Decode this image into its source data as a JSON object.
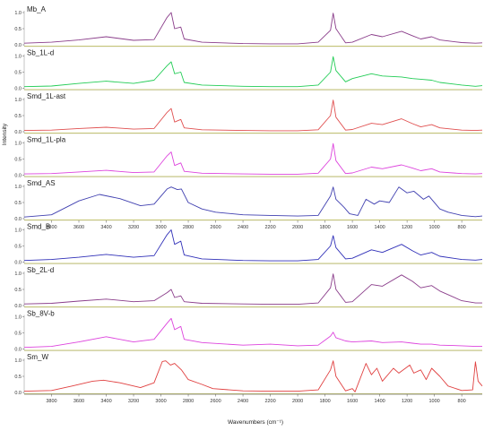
{
  "chart_data": {
    "type": "line",
    "xlabel": "Wavenumbers (cm⁻¹)",
    "ylabel": "Intensity",
    "xlim": [
      4000,
      650
    ],
    "x_ticks": [
      3800,
      3600,
      3400,
      3200,
      3000,
      2800,
      2600,
      2400,
      2200,
      2000,
      1800,
      1600,
      1400,
      1200,
      1000,
      800
    ],
    "y_tick_labels": [
      "0.0",
      "0.5",
      "1.0"
    ],
    "baseline_color": "#b5b54a",
    "series": [
      {
        "name": "Mb_A",
        "color": "#8a3d8a",
        "points": [
          [
            4000,
            0.05
          ],
          [
            3800,
            0.08
          ],
          [
            3600,
            0.15
          ],
          [
            3400,
            0.25
          ],
          [
            3200,
            0.14
          ],
          [
            3050,
            0.16
          ],
          [
            2955,
            0.85
          ],
          [
            2925,
            1.0
          ],
          [
            2900,
            0.5
          ],
          [
            2855,
            0.55
          ],
          [
            2830,
            0.18
          ],
          [
            2700,
            0.08
          ],
          [
            2400,
            0.04
          ],
          [
            2200,
            0.03
          ],
          [
            2000,
            0.03
          ],
          [
            1850,
            0.08
          ],
          [
            1760,
            0.45
          ],
          [
            1740,
            0.98
          ],
          [
            1720,
            0.5
          ],
          [
            1650,
            0.06
          ],
          [
            1600,
            0.08
          ],
          [
            1460,
            0.32
          ],
          [
            1380,
            0.25
          ],
          [
            1240,
            0.42
          ],
          [
            1160,
            0.28
          ],
          [
            1100,
            0.18
          ],
          [
            1020,
            0.25
          ],
          [
            960,
            0.15
          ],
          [
            800,
            0.07
          ],
          [
            700,
            0.05
          ],
          [
            650,
            0.06
          ]
        ]
      },
      {
        "name": "Sb_1L-d",
        "color": "#22cc55",
        "points": [
          [
            4000,
            0.05
          ],
          [
            3800,
            0.07
          ],
          [
            3600,
            0.15
          ],
          [
            3400,
            0.22
          ],
          [
            3200,
            0.15
          ],
          [
            3050,
            0.25
          ],
          [
            2955,
            0.7
          ],
          [
            2925,
            0.82
          ],
          [
            2900,
            0.45
          ],
          [
            2855,
            0.5
          ],
          [
            2830,
            0.18
          ],
          [
            2700,
            0.1
          ],
          [
            2400,
            0.06
          ],
          [
            2200,
            0.05
          ],
          [
            2000,
            0.05
          ],
          [
            1850,
            0.1
          ],
          [
            1760,
            0.5
          ],
          [
            1740,
            0.98
          ],
          [
            1720,
            0.55
          ],
          [
            1650,
            0.2
          ],
          [
            1600,
            0.3
          ],
          [
            1460,
            0.45
          ],
          [
            1380,
            0.38
          ],
          [
            1240,
            0.35
          ],
          [
            1160,
            0.3
          ],
          [
            1100,
            0.28
          ],
          [
            1020,
            0.25
          ],
          [
            960,
            0.18
          ],
          [
            800,
            0.1
          ],
          [
            700,
            0.06
          ],
          [
            650,
            0.08
          ]
        ]
      },
      {
        "name": "Smd_1L-ast",
        "color": "#e05050",
        "points": [
          [
            4000,
            0.04
          ],
          [
            3800,
            0.05
          ],
          [
            3600,
            0.1
          ],
          [
            3400,
            0.14
          ],
          [
            3200,
            0.08
          ],
          [
            3050,
            0.1
          ],
          [
            2955,
            0.6
          ],
          [
            2925,
            0.72
          ],
          [
            2900,
            0.3
          ],
          [
            2855,
            0.38
          ],
          [
            2830,
            0.12
          ],
          [
            2700,
            0.06
          ],
          [
            2400,
            0.04
          ],
          [
            2200,
            0.03
          ],
          [
            2000,
            0.03
          ],
          [
            1850,
            0.06
          ],
          [
            1760,
            0.5
          ],
          [
            1740,
            0.98
          ],
          [
            1720,
            0.45
          ],
          [
            1650,
            0.05
          ],
          [
            1600,
            0.07
          ],
          [
            1460,
            0.26
          ],
          [
            1380,
            0.22
          ],
          [
            1240,
            0.4
          ],
          [
            1160,
            0.25
          ],
          [
            1100,
            0.15
          ],
          [
            1020,
            0.22
          ],
          [
            960,
            0.12
          ],
          [
            800,
            0.05
          ],
          [
            700,
            0.04
          ],
          [
            650,
            0.05
          ]
        ]
      },
      {
        "name": "Smd_1L-pla",
        "color": "#dd44dd",
        "points": [
          [
            4000,
            0.04
          ],
          [
            3800,
            0.05
          ],
          [
            3600,
            0.1
          ],
          [
            3400,
            0.15
          ],
          [
            3200,
            0.08
          ],
          [
            3050,
            0.1
          ],
          [
            2955,
            0.6
          ],
          [
            2925,
            0.72
          ],
          [
            2900,
            0.3
          ],
          [
            2855,
            0.38
          ],
          [
            2830,
            0.12
          ],
          [
            2700,
            0.06
          ],
          [
            2400,
            0.04
          ],
          [
            2200,
            0.03
          ],
          [
            2000,
            0.03
          ],
          [
            1850,
            0.06
          ],
          [
            1760,
            0.5
          ],
          [
            1740,
            0.98
          ],
          [
            1720,
            0.45
          ],
          [
            1650,
            0.05
          ],
          [
            1600,
            0.07
          ],
          [
            1460,
            0.25
          ],
          [
            1380,
            0.2
          ],
          [
            1240,
            0.32
          ],
          [
            1160,
            0.22
          ],
          [
            1100,
            0.14
          ],
          [
            1020,
            0.2
          ],
          [
            960,
            0.1
          ],
          [
            800,
            0.05
          ],
          [
            700,
            0.04
          ],
          [
            650,
            0.05
          ]
        ]
      },
      {
        "name": "Smd_AS",
        "color": "#4040b0",
        "points": [
          [
            4000,
            0.05
          ],
          [
            3800,
            0.12
          ],
          [
            3600,
            0.55
          ],
          [
            3450,
            0.75
          ],
          [
            3300,
            0.62
          ],
          [
            3150,
            0.4
          ],
          [
            3050,
            0.45
          ],
          [
            2955,
            0.92
          ],
          [
            2925,
            0.98
          ],
          [
            2880,
            0.9
          ],
          [
            2850,
            0.92
          ],
          [
            2800,
            0.5
          ],
          [
            2700,
            0.3
          ],
          [
            2600,
            0.2
          ],
          [
            2400,
            0.12
          ],
          [
            2200,
            0.1
          ],
          [
            2000,
            0.08
          ],
          [
            1850,
            0.1
          ],
          [
            1760,
            0.7
          ],
          [
            1740,
            0.98
          ],
          [
            1720,
            0.6
          ],
          [
            1660,
            0.35
          ],
          [
            1620,
            0.15
          ],
          [
            1560,
            0.1
          ],
          [
            1500,
            0.6
          ],
          [
            1440,
            0.45
          ],
          [
            1400,
            0.55
          ],
          [
            1330,
            0.5
          ],
          [
            1260,
            0.98
          ],
          [
            1200,
            0.8
          ],
          [
            1150,
            0.85
          ],
          [
            1080,
            0.6
          ],
          [
            1040,
            0.7
          ],
          [
            960,
            0.3
          ],
          [
            900,
            0.2
          ],
          [
            800,
            0.1
          ],
          [
            700,
            0.06
          ],
          [
            650,
            0.08
          ]
        ]
      },
      {
        "name": "Smd_B",
        "color": "#3030b8",
        "points": [
          [
            4000,
            0.05
          ],
          [
            3800,
            0.08
          ],
          [
            3600,
            0.15
          ],
          [
            3400,
            0.24
          ],
          [
            3200,
            0.15
          ],
          [
            3050,
            0.2
          ],
          [
            2955,
            0.85
          ],
          [
            2925,
            1.0
          ],
          [
            2900,
            0.55
          ],
          [
            2855,
            0.65
          ],
          [
            2830,
            0.22
          ],
          [
            2700,
            0.1
          ],
          [
            2400,
            0.05
          ],
          [
            2200,
            0.04
          ],
          [
            2000,
            0.04
          ],
          [
            1850,
            0.08
          ],
          [
            1760,
            0.5
          ],
          [
            1740,
            0.82
          ],
          [
            1720,
            0.45
          ],
          [
            1650,
            0.1
          ],
          [
            1600,
            0.12
          ],
          [
            1460,
            0.38
          ],
          [
            1380,
            0.3
          ],
          [
            1240,
            0.55
          ],
          [
            1160,
            0.35
          ],
          [
            1100,
            0.22
          ],
          [
            1020,
            0.3
          ],
          [
            960,
            0.18
          ],
          [
            800,
            0.08
          ],
          [
            700,
            0.06
          ],
          [
            650,
            0.08
          ]
        ]
      },
      {
        "name": "Sb_2L-d",
        "color": "#8a3d8a",
        "points": [
          [
            4000,
            0.05
          ],
          [
            3800,
            0.07
          ],
          [
            3600,
            0.14
          ],
          [
            3400,
            0.2
          ],
          [
            3200,
            0.12
          ],
          [
            3050,
            0.15
          ],
          [
            2955,
            0.4
          ],
          [
            2925,
            0.5
          ],
          [
            2900,
            0.25
          ],
          [
            2855,
            0.3
          ],
          [
            2830,
            0.12
          ],
          [
            2700,
            0.07
          ],
          [
            2400,
            0.05
          ],
          [
            2200,
            0.04
          ],
          [
            2000,
            0.04
          ],
          [
            1850,
            0.08
          ],
          [
            1760,
            0.55
          ],
          [
            1740,
            0.98
          ],
          [
            1720,
            0.5
          ],
          [
            1650,
            0.1
          ],
          [
            1600,
            0.12
          ],
          [
            1460,
            0.65
          ],
          [
            1380,
            0.6
          ],
          [
            1240,
            0.95
          ],
          [
            1160,
            0.75
          ],
          [
            1100,
            0.55
          ],
          [
            1020,
            0.62
          ],
          [
            960,
            0.45
          ],
          [
            800,
            0.15
          ],
          [
            700,
            0.08
          ],
          [
            650,
            0.08
          ]
        ]
      },
      {
        "name": "Sb_8V-b",
        "color": "#dd44dd",
        "points": [
          [
            4000,
            0.05
          ],
          [
            3800,
            0.08
          ],
          [
            3600,
            0.22
          ],
          [
            3400,
            0.38
          ],
          [
            3200,
            0.22
          ],
          [
            3050,
            0.3
          ],
          [
            2955,
            0.8
          ],
          [
            2925,
            0.95
          ],
          [
            2900,
            0.6
          ],
          [
            2855,
            0.7
          ],
          [
            2830,
            0.3
          ],
          [
            2700,
            0.2
          ],
          [
            2400,
            0.12
          ],
          [
            2200,
            0.15
          ],
          [
            2000,
            0.1
          ],
          [
            1850,
            0.12
          ],
          [
            1760,
            0.4
          ],
          [
            1740,
            0.52
          ],
          [
            1720,
            0.35
          ],
          [
            1650,
            0.25
          ],
          [
            1600,
            0.22
          ],
          [
            1460,
            0.25
          ],
          [
            1380,
            0.2
          ],
          [
            1240,
            0.22
          ],
          [
            1160,
            0.18
          ],
          [
            1100,
            0.15
          ],
          [
            1020,
            0.15
          ],
          [
            960,
            0.12
          ],
          [
            800,
            0.1
          ],
          [
            700,
            0.08
          ],
          [
            650,
            0.08
          ]
        ]
      },
      {
        "name": "Sm_W",
        "color": "#e04040",
        "points": [
          [
            4000,
            0.04
          ],
          [
            3800,
            0.06
          ],
          [
            3650,
            0.2
          ],
          [
            3500,
            0.35
          ],
          [
            3420,
            0.38
          ],
          [
            3300,
            0.3
          ],
          [
            3150,
            0.15
          ],
          [
            3050,
            0.3
          ],
          [
            2990,
            0.96
          ],
          [
            2965,
            0.98
          ],
          [
            2930,
            0.85
          ],
          [
            2900,
            0.9
          ],
          [
            2850,
            0.7
          ],
          [
            2800,
            0.4
          ],
          [
            2700,
            0.25
          ],
          [
            2620,
            0.12
          ],
          [
            2400,
            0.05
          ],
          [
            2200,
            0.04
          ],
          [
            2000,
            0.04
          ],
          [
            1850,
            0.08
          ],
          [
            1760,
            0.7
          ],
          [
            1740,
            0.98
          ],
          [
            1720,
            0.5
          ],
          [
            1650,
            0.05
          ],
          [
            1600,
            0.12
          ],
          [
            1580,
            0.02
          ],
          [
            1500,
            0.9
          ],
          [
            1460,
            0.55
          ],
          [
            1420,
            0.75
          ],
          [
            1380,
            0.35
          ],
          [
            1300,
            0.75
          ],
          [
            1260,
            0.6
          ],
          [
            1180,
            0.85
          ],
          [
            1150,
            0.6
          ],
          [
            1100,
            0.7
          ],
          [
            1060,
            0.4
          ],
          [
            1020,
            0.75
          ],
          [
            960,
            0.5
          ],
          [
            900,
            0.2
          ],
          [
            800,
            0.06
          ],
          [
            720,
            0.08
          ],
          [
            700,
            0.95
          ],
          [
            680,
            0.35
          ],
          [
            650,
            0.2
          ]
        ]
      }
    ]
  }
}
